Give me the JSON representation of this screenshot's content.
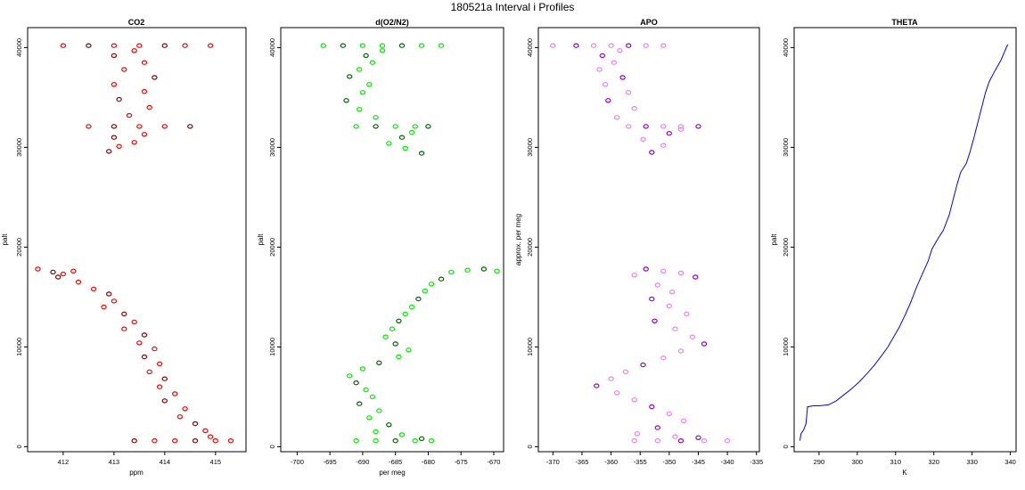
{
  "figure": {
    "title": "180521a   Interval i Profiles"
  },
  "chart_data": [
    {
      "type": "scatter",
      "title": "CO2",
      "xlabel": "ppm",
      "ylabel": "palt",
      "xlim": [
        411.3,
        415.6
      ],
      "ylim": [
        -500,
        42000
      ],
      "xticks": [
        412,
        413,
        414,
        415
      ],
      "yticks": [
        0,
        10000,
        20000,
        30000,
        40000
      ],
      "colors": {
        "primary": "#ff0000",
        "secondary": "#8b0000"
      },
      "series": [
        {
          "name": "profile",
          "points": [
            [
              411.5,
              17800
            ],
            [
              411.8,
              17500
            ],
            [
              412.0,
              17300
            ],
            [
              412.2,
              17600
            ],
            [
              411.9,
              17000
            ],
            [
              412.3,
              16500
            ],
            [
              412.6,
              15800
            ],
            [
              412.9,
              15300
            ],
            [
              413.0,
              14600
            ],
            [
              412.8,
              14000
            ],
            [
              413.2,
              13300
            ],
            [
              413.4,
              12500
            ],
            [
              413.2,
              11800
            ],
            [
              413.6,
              11200
            ],
            [
              413.5,
              10400
            ],
            [
              413.8,
              9800
            ],
            [
              413.6,
              9000
            ],
            [
              413.9,
              8300
            ],
            [
              413.7,
              7500
            ],
            [
              414.0,
              6800
            ],
            [
              413.9,
              6000
            ],
            [
              414.2,
              5300
            ],
            [
              414.0,
              4600
            ],
            [
              414.4,
              3800
            ],
            [
              414.3,
              3000
            ],
            [
              414.6,
              2300
            ],
            [
              414.8,
              1600
            ],
            [
              414.9,
              1000
            ],
            [
              414.6,
              600
            ],
            [
              414.2,
              600
            ],
            [
              413.8,
              600
            ],
            [
              413.4,
              600
            ],
            [
              415.0,
              600
            ],
            [
              415.3,
              600
            ],
            [
              412.9,
              29600
            ],
            [
              413.1,
              30100
            ],
            [
              413.4,
              30500
            ],
            [
              413.0,
              31000
            ],
            [
              413.6,
              31300
            ],
            [
              412.5,
              32100
            ],
            [
              413.0,
              32100
            ],
            [
              413.5,
              32100
            ],
            [
              414.0,
              32100
            ],
            [
              414.5,
              32100
            ],
            [
              413.3,
              33200
            ],
            [
              413.7,
              34000
            ],
            [
              413.1,
              34800
            ],
            [
              413.6,
              35600
            ],
            [
              413.0,
              36300
            ],
            [
              413.8,
              37000
            ],
            [
              413.2,
              37800
            ],
            [
              413.6,
              38500
            ],
            [
              413.0,
              39200
            ],
            [
              413.4,
              39700
            ],
            [
              412.0,
              40200
            ],
            [
              412.5,
              40200
            ],
            [
              413.0,
              40200
            ],
            [
              413.5,
              40200
            ],
            [
              414.0,
              40200
            ],
            [
              414.4,
              40200
            ],
            [
              414.9,
              40200
            ]
          ]
        }
      ]
    },
    {
      "type": "scatter",
      "title": "d(O2/N2)",
      "xlabel": "per meg",
      "ylabel": "palt",
      "xlim": [
        -702.5,
        -668.5
      ],
      "ylim": [
        -500,
        42000
      ],
      "xticks": [
        -700,
        -695,
        -690,
        -685,
        -680,
        -675,
        -670
      ],
      "yticks": [
        0,
        10000,
        20000,
        30000,
        40000
      ],
      "colors": {
        "primary": "#00ee00",
        "secondary": "#006400"
      },
      "series": [
        {
          "name": "profile",
          "points": [
            [
              -669.5,
              17600
            ],
            [
              -671.5,
              17800
            ],
            [
              -674.0,
              17700
            ],
            [
              -676.5,
              17500
            ],
            [
              -678.0,
              16800
            ],
            [
              -679.5,
              16300
            ],
            [
              -680.5,
              15600
            ],
            [
              -681.5,
              14800
            ],
            [
              -682.5,
              14000
            ],
            [
              -683.5,
              13300
            ],
            [
              -684.5,
              12600
            ],
            [
              -685.5,
              11800
            ],
            [
              -686.5,
              11000
            ],
            [
              -685.0,
              10300
            ],
            [
              -683.0,
              9700
            ],
            [
              -684.5,
              9000
            ],
            [
              -687.5,
              8400
            ],
            [
              -690.0,
              7800
            ],
            [
              -692.0,
              7100
            ],
            [
              -691.0,
              6400
            ],
            [
              -689.5,
              5700
            ],
            [
              -688.5,
              5000
            ],
            [
              -690.5,
              4300
            ],
            [
              -687.5,
              3600
            ],
            [
              -689.0,
              2900
            ],
            [
              -686.0,
              2200
            ],
            [
              -688.0,
              1500
            ],
            [
              -684.0,
              1200
            ],
            [
              -681.0,
              800
            ],
            [
              -691.0,
              600
            ],
            [
              -688.0,
              600
            ],
            [
              -685.0,
              600
            ],
            [
              -682.0,
              600
            ],
            [
              -679.5,
              600
            ],
            [
              -681.0,
              29400
            ],
            [
              -683.5,
              29900
            ],
            [
              -686.0,
              30400
            ],
            [
              -684.0,
              31000
            ],
            [
              -682.5,
              31500
            ],
            [
              -691.0,
              32100
            ],
            [
              -688.0,
              32100
            ],
            [
              -685.0,
              32100
            ],
            [
              -682.0,
              32100
            ],
            [
              -680.0,
              32100
            ],
            [
              -688.0,
              33000
            ],
            [
              -690.5,
              33800
            ],
            [
              -692.5,
              34700
            ],
            [
              -690.0,
              35500
            ],
            [
              -689.0,
              36300
            ],
            [
              -692.0,
              37100
            ],
            [
              -690.5,
              37800
            ],
            [
              -688.5,
              38500
            ],
            [
              -689.5,
              39200
            ],
            [
              -687.0,
              39700
            ],
            [
              -696.0,
              40200
            ],
            [
              -693.0,
              40200
            ],
            [
              -690.0,
              40200
            ],
            [
              -687.0,
              40200
            ],
            [
              -684.0,
              40200
            ],
            [
              -681.0,
              40200
            ],
            [
              -678.0,
              40200
            ]
          ]
        }
      ]
    },
    {
      "type": "scatter",
      "title": "APO",
      "xlabel": "",
      "ylabel": "approx. per meg",
      "xlim": [
        -372.5,
        -334.5
      ],
      "ylim": [
        -500,
        42000
      ],
      "xticks": [
        -370,
        -365,
        -360,
        -355,
        -350,
        -345,
        -340,
        -335
      ],
      "yticks": [
        0,
        10000,
        20000,
        30000,
        40000
      ],
      "colors": {
        "primary": "#ee82ee",
        "secondary": "#9400d3"
      },
      "series": [
        {
          "name": "profile",
          "points": [
            [
              -356.0,
              17200
            ],
            [
              -354.0,
              17800
            ],
            [
              -351.0,
              17600
            ],
            [
              -348.0,
              17400
            ],
            [
              -345.5,
              17000
            ],
            [
              -352.0,
              16200
            ],
            [
              -349.5,
              15500
            ],
            [
              -353.0,
              14800
            ],
            [
              -350.0,
              14100
            ],
            [
              -347.0,
              13300
            ],
            [
              -352.5,
              12600
            ],
            [
              -349.0,
              11800
            ],
            [
              -346.0,
              11000
            ],
            [
              -344.0,
              10300
            ],
            [
              -348.0,
              9600
            ],
            [
              -351.0,
              8900
            ],
            [
              -354.5,
              8200
            ],
            [
              -357.5,
              7500
            ],
            [
              -360.0,
              6800
            ],
            [
              -362.5,
              6100
            ],
            [
              -359.0,
              5400
            ],
            [
              -356.0,
              4700
            ],
            [
              -353.0,
              4000
            ],
            [
              -350.0,
              3300
            ],
            [
              -347.5,
              2600
            ],
            [
              -352.0,
              1900
            ],
            [
              -355.5,
              1300
            ],
            [
              -349.0,
              1000
            ],
            [
              -345.0,
              900
            ],
            [
              -356.0,
              600
            ],
            [
              -352.0,
              600
            ],
            [
              -348.0,
              600
            ],
            [
              -344.0,
              600
            ],
            [
              -340.0,
              600
            ],
            [
              -353.0,
              29500
            ],
            [
              -351.0,
              30200
            ],
            [
              -354.5,
              30800
            ],
            [
              -350.0,
              31400
            ],
            [
              -348.0,
              31800
            ],
            [
              -357.0,
              32100
            ],
            [
              -354.0,
              32100
            ],
            [
              -351.0,
              32100
            ],
            [
              -348.0,
              32100
            ],
            [
              -345.0,
              32100
            ],
            [
              -359.0,
              33000
            ],
            [
              -356.0,
              33900
            ],
            [
              -360.5,
              34700
            ],
            [
              -357.0,
              35500
            ],
            [
              -361.0,
              36300
            ],
            [
              -358.0,
              37000
            ],
            [
              -362.0,
              37800
            ],
            [
              -359.5,
              38500
            ],
            [
              -361.5,
              39200
            ],
            [
              -358.5,
              39700
            ],
            [
              -370.0,
              40200
            ],
            [
              -366.0,
              40200
            ],
            [
              -363.0,
              40200
            ],
            [
              -360.0,
              40200
            ],
            [
              -357.0,
              40200
            ],
            [
              -354.0,
              40200
            ],
            [
              -351.0,
              40200
            ]
          ]
        }
      ]
    },
    {
      "type": "line",
      "title": "THETA",
      "xlabel": "K",
      "ylabel": "palt",
      "xlim": [
        283.5,
        341.5
      ],
      "ylim": [
        -500,
        42000
      ],
      "xticks": [
        290,
        300,
        310,
        320,
        330,
        340
      ],
      "yticks": [
        0,
        10000,
        20000,
        30000,
        40000
      ],
      "colors": {
        "primary": "#0000ff"
      },
      "series": [
        {
          "name": "profile",
          "points": [
            [
              285.0,
              600
            ],
            [
              285.3,
              1300
            ],
            [
              286.0,
              1700
            ],
            [
              286.6,
              2300
            ],
            [
              286.8,
              3200
            ],
            [
              287.0,
              4000
            ],
            [
              288.5,
              4100
            ],
            [
              290.0,
              4100
            ],
            [
              292.5,
              4200
            ],
            [
              294.5,
              4600
            ],
            [
              296.5,
              5200
            ],
            [
              298.5,
              5800
            ],
            [
              300.5,
              6500
            ],
            [
              302.5,
              7300
            ],
            [
              304.5,
              8200
            ],
            [
              306.5,
              9200
            ],
            [
              308.0,
              10000
            ],
            [
              309.5,
              11000
            ],
            [
              311.0,
              12000
            ],
            [
              312.5,
              13200
            ],
            [
              314.0,
              14500
            ],
            [
              315.5,
              16000
            ],
            [
              317.0,
              17300
            ],
            [
              318.5,
              18600
            ],
            [
              319.5,
              19800
            ],
            [
              321.0,
              20800
            ],
            [
              322.5,
              21700
            ],
            [
              324.0,
              23200
            ],
            [
              325.0,
              24700
            ],
            [
              326.0,
              26200
            ],
            [
              327.0,
              27500
            ],
            [
              328.5,
              28400
            ],
            [
              329.5,
              29600
            ],
            [
              330.5,
              31000
            ],
            [
              331.5,
              32500
            ],
            [
              332.5,
              34000
            ],
            [
              333.5,
              35500
            ],
            [
              334.5,
              36600
            ],
            [
              336.0,
              37700
            ],
            [
              337.5,
              38700
            ],
            [
              338.5,
              39600
            ],
            [
              339.3,
              40300
            ]
          ]
        }
      ]
    }
  ]
}
